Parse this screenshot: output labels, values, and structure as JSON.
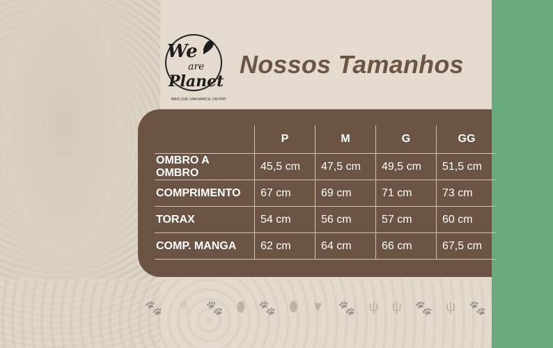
{
  "logo": {
    "line1": "We",
    "line2": "are",
    "line3": "Planet",
    "tagline": "MAIS QUE UMA MARCA, UM PRINCÍPIO"
  },
  "title": "Nossos Tamanhos",
  "table": {
    "headers": [
      "",
      "P",
      "M",
      "G",
      "GG"
    ],
    "rows": [
      {
        "label": "OMBRO A OMBRO",
        "values": [
          "45,5 cm",
          "47,5 cm",
          "49,5 cm",
          "51,5 cm"
        ]
      },
      {
        "label": "COMPRIMENTO",
        "values": [
          "67 cm",
          "69 cm",
          "71 cm",
          "73 cm"
        ]
      },
      {
        "label": "TORAX",
        "values": [
          "54 cm",
          "56 cm",
          "57 cm",
          "60 cm"
        ]
      },
      {
        "label": "COMP. MANGA",
        "values": [
          "62 cm",
          "64 cm",
          "66 cm",
          "67,5 cm"
        ]
      }
    ]
  },
  "colors": {
    "panel": "#6b5444",
    "title": "#6b5646",
    "background": "#e4dbce",
    "accent_green": "#69aa7d",
    "paw": "#a08c7c"
  },
  "paw_icons": [
    "paw-print",
    "hand-print",
    "paw-print",
    "hoof-print",
    "paw-print",
    "hoof-print",
    "webbed-foot",
    "paw-print",
    "bird-foot",
    "bird-foot",
    "paw-print",
    "bird-foot",
    "paw-print"
  ]
}
